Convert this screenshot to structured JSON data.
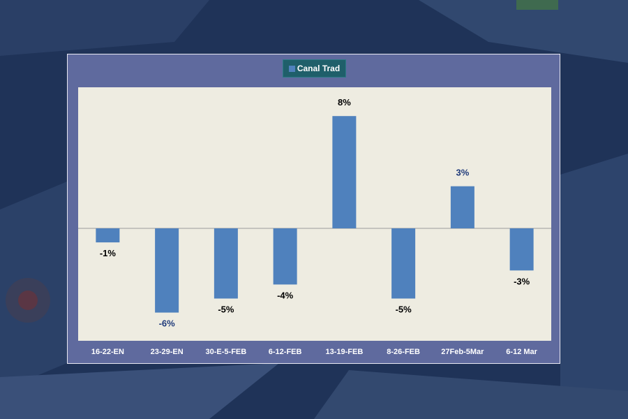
{
  "chart_data": {
    "type": "bar",
    "categories": [
      "16-22-EN",
      "23-29-EN",
      "30-E-5-FEB",
      "6-12-FEB",
      "13-19-FEB",
      "8-26-FEB",
      "27Feb-5Mar",
      "6-12 Mar"
    ],
    "series": [
      {
        "name": "Canal Trad",
        "values": [
          -1,
          -6,
          -5,
          -4,
          8,
          -5,
          3,
          -3
        ],
        "data_labels": [
          "-1%",
          "-6%",
          "-5%",
          "-4%",
          "8%",
          "-5%",
          "3%",
          "-3%"
        ]
      }
    ],
    "ylim": [
      -8,
      10
    ],
    "grid": false,
    "legend_position": "top-center",
    "colors": {
      "bar": "#4f81bd",
      "plot_background": "#eeece1",
      "frame_background": "#5f6a9e",
      "legend_background": "#1f5f6a",
      "label_dark": "#000000",
      "label_navy": "#1f3a7a",
      "axis_label": "#ffffff"
    },
    "label_colors": [
      "dark",
      "navy",
      "dark",
      "dark",
      "dark",
      "dark",
      "navy",
      "dark"
    ]
  }
}
